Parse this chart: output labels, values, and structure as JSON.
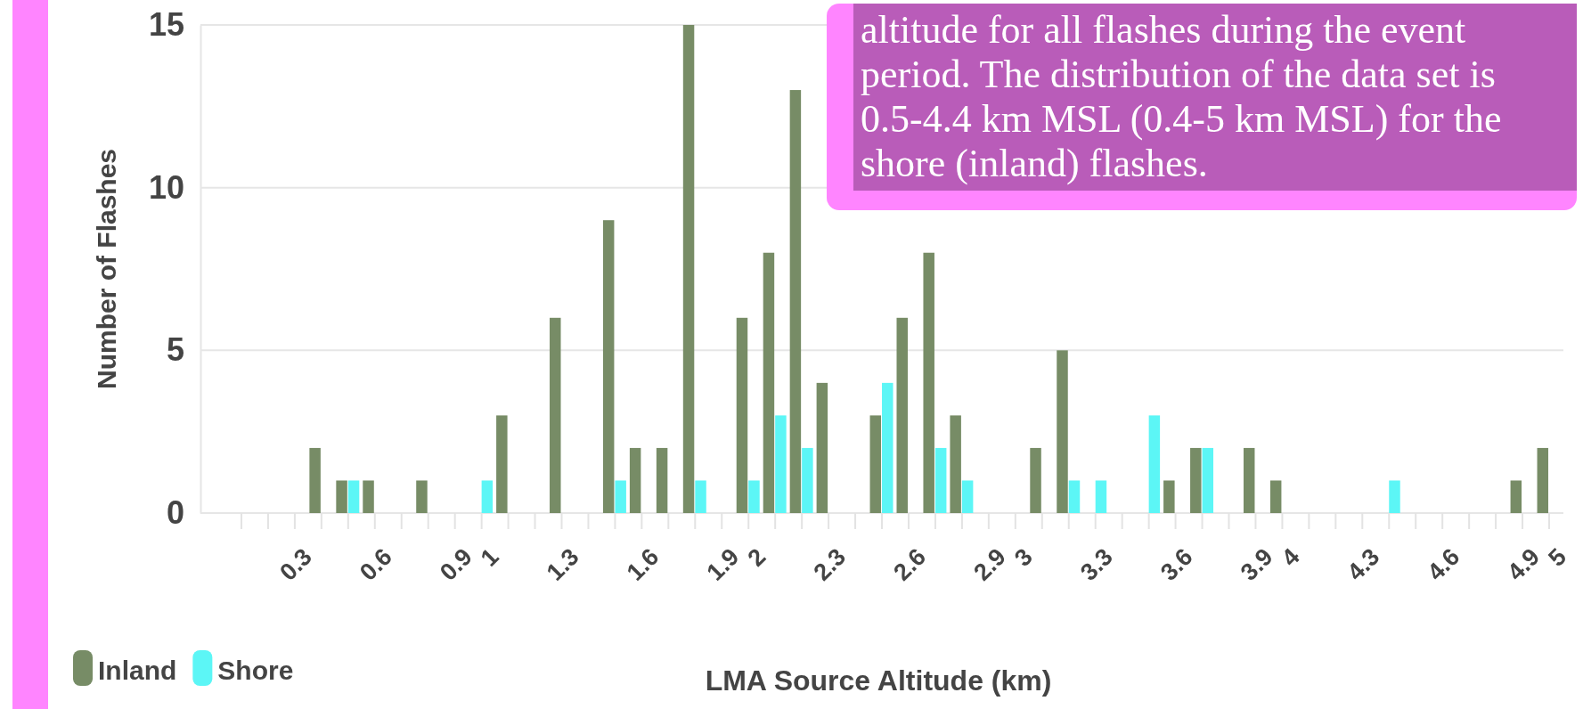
{
  "chart_data": {
    "type": "bar",
    "xlabel": "LMA Source Altitude (km)",
    "ylabel": "Number of Flashes",
    "categories": [
      null,
      null,
      "0.3",
      null,
      null,
      "0.6",
      null,
      null,
      "0.9",
      "1",
      null,
      null,
      "1.3",
      null,
      null,
      "1.6",
      null,
      null,
      "1.9",
      "2",
      null,
      null,
      "2.3",
      null,
      null,
      "2.6",
      null,
      null,
      "2.9",
      "3",
      null,
      null,
      "3.3",
      null,
      null,
      "3.6",
      null,
      null,
      "3.9",
      "4",
      null,
      null,
      "4.3",
      null,
      null,
      "4.6",
      null,
      null,
      "4.9",
      "5"
    ],
    "series": [
      {
        "name": "Inland",
        "color": "#778c66",
        "values": [
          0,
          0,
          0,
          2,
          1,
          1,
          0,
          1,
          0,
          0,
          3,
          0,
          6,
          0,
          9,
          2,
          2,
          15,
          0,
          6,
          8,
          13,
          4,
          0,
          3,
          6,
          8,
          3,
          0,
          0,
          2,
          5,
          0,
          0,
          0,
          1,
          2,
          0,
          2,
          1,
          0,
          0,
          0,
          0,
          0,
          0,
          0,
          0,
          1,
          2
        ]
      },
      {
        "name": "Shore",
        "color": "#5cf6f6",
        "values": [
          0,
          0,
          0,
          0,
          1,
          0,
          0,
          0,
          0,
          1,
          0,
          0,
          0,
          0,
          1,
          0,
          0,
          1,
          0,
          1,
          3,
          2,
          0,
          0,
          4,
          0,
          2,
          1,
          0,
          0,
          0,
          1,
          1,
          0,
          3,
          0,
          2,
          0,
          0,
          0,
          0,
          0,
          0,
          1,
          0,
          0,
          0,
          0,
          0,
          0
        ]
      }
    ],
    "ylim": [
      0,
      15
    ],
    "yticks": [
      0,
      5,
      10,
      15
    ],
    "grid": "y",
    "legend": "bottom left",
    "annotations": [
      "altitude for all flashes during the event period. The distribution of the data set is 0.5-4.4 km MSL (0.4-5 km MSL) for the shore (inland) flashes."
    ]
  }
}
